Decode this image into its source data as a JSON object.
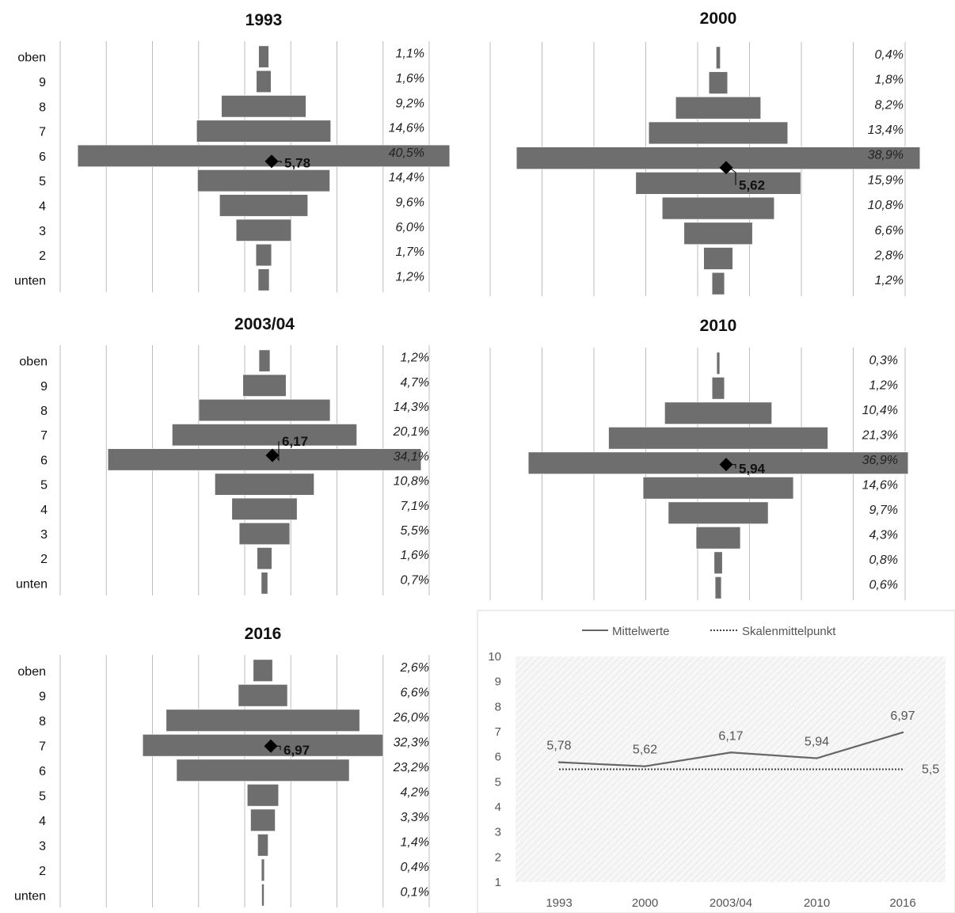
{
  "chart_data": [
    {
      "type": "bar",
      "orientation": "horizontal-pyramid",
      "title": "1993",
      "categories": [
        "oben",
        "9",
        "8",
        "7",
        "6",
        "5",
        "4",
        "3",
        "2",
        "unten"
      ],
      "values": [
        1.1,
        1.6,
        9.2,
        14.6,
        40.5,
        14.4,
        9.6,
        6.0,
        1.7,
        1.2
      ],
      "value_labels": [
        "1,1%",
        "1,6%",
        "9,2%",
        "14,6%",
        "40,5%",
        "14,4%",
        "9,6%",
        "6,0%",
        "1,7%",
        "1,2%"
      ],
      "mean": 5.78,
      "mean_label": "5,78",
      "bar_color": "#6e6e6e"
    },
    {
      "type": "bar",
      "orientation": "horizontal-pyramid",
      "title": "2000",
      "categories": [
        "oben",
        "9",
        "8",
        "7",
        "6",
        "5",
        "4",
        "3",
        "2",
        "unten"
      ],
      "values": [
        0.4,
        1.8,
        8.2,
        13.4,
        38.9,
        15.9,
        10.8,
        6.6,
        2.8,
        1.2
      ],
      "value_labels": [
        "0,4%",
        "1,8%",
        "8,2%",
        "13,4%",
        "38,9%",
        "15,9%",
        "10,8%",
        "6,6%",
        "2,8%",
        "1,2%"
      ],
      "mean": 5.62,
      "mean_label": "5,62",
      "bar_color": "#6e6e6e"
    },
    {
      "type": "bar",
      "orientation": "horizontal-pyramid",
      "title": "2003/04",
      "categories": [
        "oben",
        "9",
        "8",
        "7",
        "6",
        "5",
        "4",
        "3",
        "2",
        "unten"
      ],
      "values": [
        1.2,
        4.7,
        14.3,
        20.1,
        34.1,
        10.8,
        7.1,
        5.5,
        1.6,
        0.7
      ],
      "value_labels": [
        "1,2%",
        "4,7%",
        "14,3%",
        "20,1%",
        "34,1%",
        "10,8%",
        "7,1%",
        "5,5%",
        "1,6%",
        "0,7%"
      ],
      "mean": 6.17,
      "mean_label": "6,17",
      "bar_color": "#6e6e6e"
    },
    {
      "type": "bar",
      "orientation": "horizontal-pyramid",
      "title": "2010",
      "categories": [
        "oben",
        "9",
        "8",
        "7",
        "6",
        "5",
        "4",
        "3",
        "2",
        "unten"
      ],
      "values": [
        0.3,
        1.2,
        10.4,
        21.3,
        36.9,
        14.6,
        9.7,
        4.3,
        0.8,
        0.6
      ],
      "value_labels": [
        "0,3%",
        "1,2%",
        "10,4%",
        "21,3%",
        "36,9%",
        "14,6%",
        "9,7%",
        "4,3%",
        "0,8%",
        "0,6%"
      ],
      "mean": 5.94,
      "mean_label": "5,94",
      "bar_color": "#6e6e6e"
    },
    {
      "type": "bar",
      "orientation": "horizontal-pyramid",
      "title": "2016",
      "categories": [
        "oben",
        "9",
        "8",
        "7",
        "6",
        "5",
        "4",
        "3",
        "2",
        "unten"
      ],
      "values": [
        2.6,
        6.6,
        26.0,
        32.3,
        23.2,
        4.2,
        3.3,
        1.4,
        0.4,
        0.1
      ],
      "value_labels": [
        "2,6%",
        "6,6%",
        "26,0%",
        "32,3%",
        "23,2%",
        "4,2%",
        "3,3%",
        "1,4%",
        "0,4%",
        "0,1%"
      ],
      "mean": 6.97,
      "mean_label": "6,97",
      "bar_color": "#6e6e6e"
    },
    {
      "type": "line",
      "categories": [
        "1993",
        "2000",
        "2003/04",
        "2010",
        "2016"
      ],
      "ylim": [
        1,
        10
      ],
      "yticks": [
        "1",
        "2",
        "3",
        "4",
        "5",
        "6",
        "7",
        "8",
        "9",
        "10"
      ],
      "grid": false,
      "legend_position": "top",
      "series": [
        {
          "name": "Mittelwerte",
          "values": [
            5.78,
            5.62,
            6.17,
            5.94,
            6.97
          ],
          "labels": [
            "5,78",
            "5,62",
            "6,17",
            "5,94",
            "6,97"
          ],
          "style": "solid",
          "color": "#666666"
        },
        {
          "name": "Skalenmittelpunkt",
          "values": [
            5.5,
            5.5,
            5.5,
            5.5,
            5.5
          ],
          "end_label": "5,5",
          "style": "dotted",
          "color": "#444444"
        }
      ],
      "plot_background": "hatched-light-gray"
    }
  ]
}
